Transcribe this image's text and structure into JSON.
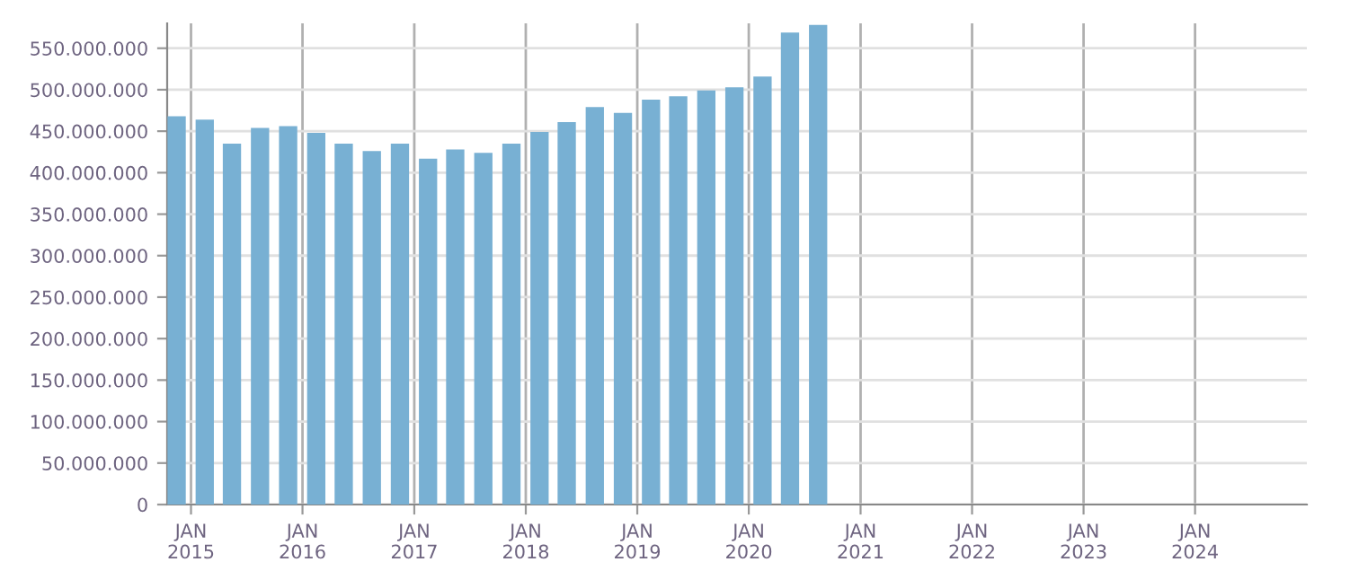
{
  "chart_data": {
    "type": "bar",
    "x": [
      "2014-11-15",
      "2015-02-15",
      "2015-05-15",
      "2015-08-15",
      "2015-11-15",
      "2016-02-15",
      "2016-05-15",
      "2016-08-15",
      "2016-11-15",
      "2017-02-15",
      "2017-05-15",
      "2017-08-15",
      "2017-11-15",
      "2018-02-15",
      "2018-05-15",
      "2018-08-15",
      "2018-11-15",
      "2019-02-15",
      "2019-05-15",
      "2019-08-15",
      "2019-11-15",
      "2020-02-15",
      "2020-05-15",
      "2020-08-15"
    ],
    "values": [
      468000000,
      464000000,
      435000000,
      454000000,
      456000000,
      448000000,
      435000000,
      426000000,
      435000000,
      417000000,
      428000000,
      424000000,
      435000000,
      449000000,
      461000000,
      479000000,
      472000000,
      488000000,
      492000000,
      499000000,
      503000000,
      516000000,
      569000000,
      578000000
    ],
    "color": "#78b0d3",
    "xlim": [
      "2014-10-15",
      "2025-01-01"
    ],
    "xticks": [
      {
        "value": "2015-01-01",
        "label": "JAN\n2015"
      },
      {
        "value": "2016-01-01",
        "label": "JAN\n2016"
      },
      {
        "value": "2017-01-01",
        "label": "JAN\n2017"
      },
      {
        "value": "2018-01-01",
        "label": "JAN\n2018"
      },
      {
        "value": "2019-01-01",
        "label": "JAN\n2019"
      },
      {
        "value": "2020-01-01",
        "label": "JAN\n2020"
      },
      {
        "value": "2021-01-01",
        "label": "JAN\n2021"
      },
      {
        "value": "2022-01-01",
        "label": "JAN\n2022"
      },
      {
        "value": "2023-01-01",
        "label": "JAN\n2023"
      },
      {
        "value": "2024-01-01",
        "label": "JAN\n2024"
      }
    ],
    "ylim": [
      0,
      580000000
    ],
    "yticks": [
      {
        "value": 0,
        "label": "0"
      },
      {
        "value": 50000000,
        "label": "50.000.000"
      },
      {
        "value": 100000000,
        "label": "100.000.000"
      },
      {
        "value": 150000000,
        "label": "150.000.000"
      },
      {
        "value": 200000000,
        "label": "200.000.000"
      },
      {
        "value": 250000000,
        "label": "250.000.000"
      },
      {
        "value": 300000000,
        "label": "300.000.000"
      },
      {
        "value": 350000000,
        "label": "350.000.000"
      },
      {
        "value": 400000000,
        "label": "400.000.000"
      },
      {
        "value": 450000000,
        "label": "450.000.000"
      },
      {
        "value": 500000000,
        "label": "500.000.000"
      },
      {
        "value": 550000000,
        "label": "550.000.000"
      }
    ],
    "grid": true
  }
}
